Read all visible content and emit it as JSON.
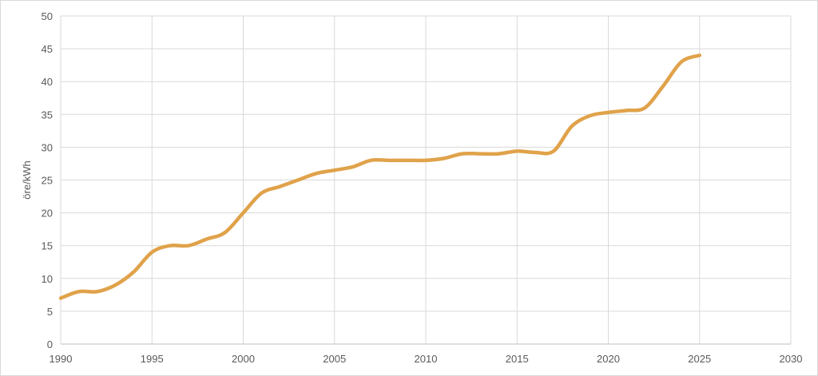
{
  "chart_data": {
    "type": "line",
    "title": "",
    "xlabel": "",
    "ylabel": "öre/kWh",
    "xlim": [
      1990,
      2030
    ],
    "ylim": [
      0,
      50
    ],
    "x_ticks": [
      "1990",
      "1995",
      "2000",
      "2005",
      "2010",
      "2015",
      "2020",
      "2025",
      "2030"
    ],
    "y_ticks": [
      "0",
      "5",
      "10",
      "15",
      "20",
      "25",
      "30",
      "35",
      "40",
      "45",
      "50"
    ],
    "grid": true,
    "legend": "none",
    "series": [
      {
        "color": "#E0A24A",
        "x": [
          1990,
          1991,
          1992,
          1993,
          1994,
          1995,
          1996,
          1997,
          1998,
          1999,
          2000,
          2001,
          2002,
          2003,
          2004,
          2005,
          2006,
          2007,
          2008,
          2009,
          2010,
          2011,
          2012,
          2013,
          2014,
          2015,
          2016,
          2017,
          2018,
          2019,
          2020,
          2021,
          2022,
          2023,
          2024,
          2025
        ],
        "values": [
          7,
          8,
          8,
          9,
          11,
          14,
          15,
          15,
          16,
          17,
          20,
          23,
          24,
          25,
          26,
          26.5,
          27,
          28,
          28,
          28,
          28,
          28.3,
          29,
          29,
          29,
          29.4,
          29.2,
          29.4,
          33.2,
          34.8,
          35.3,
          35.6,
          36,
          39.3,
          43,
          44
        ]
      }
    ]
  }
}
